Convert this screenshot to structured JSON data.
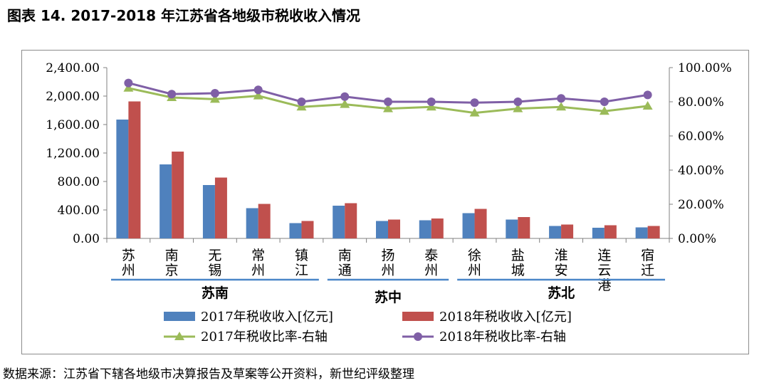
{
  "title": "图表 14. 2017-2018 年江苏省各地级市税收收入情况",
  "source": "数据来源：江苏省下辖各地级市决算报告及草案等公开资料，新世纪评级整理",
  "colors": {
    "bar2017": "#4f81bd",
    "bar2018": "#c0504d",
    "line2017": "#9bbb59",
    "line2018": "#7f5fa6",
    "group_line": "#4a86c8",
    "grid": "#d9d9d9"
  },
  "chart_data": {
    "type": "bar+line",
    "categories": [
      "苏州",
      "南京",
      "无锡",
      "常州",
      "镇江",
      "南通",
      "扬州",
      "泰州",
      "徐州",
      "盐城",
      "淮安",
      "连云港",
      "宿迁"
    ],
    "category_chars": [
      [
        "苏",
        "州"
      ],
      [
        "南",
        "京"
      ],
      [
        "无",
        "锡"
      ],
      [
        "常",
        "州"
      ],
      [
        "镇",
        "江"
      ],
      [
        "南",
        "通"
      ],
      [
        "扬",
        "州"
      ],
      [
        "泰",
        "州"
      ],
      [
        "徐",
        "州"
      ],
      [
        "盐",
        "城"
      ],
      [
        "淮",
        "安"
      ],
      [
        "连",
        "云",
        "港"
      ],
      [
        "宿",
        "迁"
      ]
    ],
    "series": [
      {
        "name": "2017年税收收入[亿元]",
        "type": "bar",
        "axis": "left",
        "values": [
          1670,
          1040,
          750,
          425,
          215,
          460,
          245,
          255,
          355,
          265,
          175,
          150,
          155
        ]
      },
      {
        "name": "2018年税收收入[亿元]",
        "type": "bar",
        "axis": "left",
        "values": [
          1925,
          1220,
          855,
          485,
          245,
          495,
          265,
          280,
          415,
          300,
          195,
          185,
          175
        ]
      },
      {
        "name": "2017年税收比率-右轴",
        "type": "line",
        "axis": "right",
        "marker": "triangle",
        "values": [
          88.0,
          82.5,
          81.5,
          83.5,
          77.0,
          78.5,
          76.0,
          77.0,
          73.5,
          76.0,
          77.0,
          74.5,
          77.5
        ]
      },
      {
        "name": "2018年税收比率-右轴",
        "type": "line",
        "axis": "right",
        "marker": "circle",
        "values": [
          91.0,
          84.5,
          85.0,
          87.0,
          80.0,
          83.0,
          80.0,
          80.0,
          79.5,
          80.0,
          82.0,
          80.0,
          84.0
        ]
      }
    ],
    "y_left": {
      "min": 0,
      "max": 2400,
      "ticks": [
        "0.00",
        "400.00",
        "800.00",
        "1,200.00",
        "1,600.00",
        "2,000.00",
        "2,400.00"
      ]
    },
    "y_right": {
      "min": 0,
      "max": 100,
      "ticks": [
        "0.00%",
        "20.00%",
        "40.00%",
        "60.00%",
        "80.00%",
        "100.00%"
      ]
    },
    "groups": [
      {
        "label": "苏南",
        "start": 0,
        "end": 4
      },
      {
        "label": "苏中",
        "start": 5,
        "end": 7
      },
      {
        "label": "苏北",
        "start": 8,
        "end": 12
      }
    ],
    "legend": [
      "2017年税收收入[亿元]",
      "2018年税收收入[亿元]",
      "2017年税收比率-右轴",
      "2018年税收比率-右轴"
    ],
    "legend_position": "bottom"
  }
}
